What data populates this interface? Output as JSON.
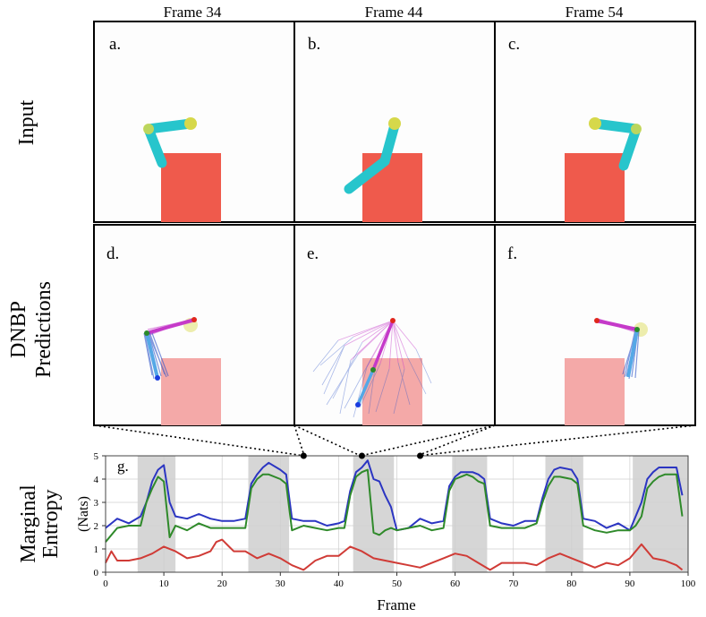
{
  "columns": [
    "Frame 34",
    "Frame 44",
    "Frame 54"
  ],
  "row_labels": {
    "input": "Input",
    "pred_line1": "DNBP",
    "pred_line2": "Predictions",
    "entropy_line1": "Marginal",
    "entropy_line2": "Entropy",
    "entropy_units": "(Nats)"
  },
  "panel_letters": [
    "a.",
    "b.",
    "c.",
    "d.",
    "e.",
    "f."
  ],
  "colors": {
    "arm": "#27c5cc",
    "joint": "#d6d84a",
    "block": "#ef5a4c",
    "block_faded": "#f4a9a8",
    "pred_magenta": "#c53ac9",
    "pred_blue": "#2e55c9",
    "pred_light_blue": "#55a8e6",
    "series_blue": "#2b35c2",
    "series_green": "#2f8a2a",
    "series_red": "#d03b36",
    "shade": "#d6d6d6"
  },
  "chart_data": {
    "type": "line",
    "panel_label": "g.",
    "title": "",
    "xlabel": "Frame",
    "ylabel": "Marginal Entropy (Nats)",
    "xlim": [
      0,
      100
    ],
    "ylim": [
      0,
      5
    ],
    "xticks": [
      0,
      10,
      20,
      30,
      40,
      50,
      60,
      70,
      80,
      90,
      100
    ],
    "yticks": [
      0,
      1,
      2,
      3,
      4,
      5
    ],
    "grid": true,
    "shaded_ranges": [
      [
        5.5,
        12
      ],
      [
        24.5,
        31.5
      ],
      [
        42.5,
        49.5
      ],
      [
        59.5,
        65.5
      ],
      [
        75.5,
        82
      ],
      [
        90.5,
        100
      ]
    ],
    "marked_frames": [
      34,
      44,
      54
    ],
    "series": [
      {
        "name": "blue",
        "color": "#2b35c2",
        "x": [
          0,
          2,
          4,
          6,
          7,
          8,
          9,
          10,
          11,
          12,
          14,
          16,
          18,
          20,
          22,
          24,
          25,
          26,
          27,
          28,
          30,
          31,
          32,
          34,
          36,
          38,
          40,
          41,
          42,
          43,
          44,
          45,
          46,
          47,
          48,
          49,
          50,
          52,
          54,
          56,
          58,
          59,
          60,
          61,
          62,
          63,
          64,
          65,
          66,
          68,
          70,
          72,
          74,
          75,
          76,
          77,
          78,
          80,
          81,
          82,
          84,
          86,
          88,
          90,
          91,
          92,
          93,
          94,
          95,
          96,
          97,
          98,
          99
        ],
        "y": [
          1.9,
          2.3,
          2.1,
          2.4,
          3.0,
          3.9,
          4.4,
          4.6,
          3.0,
          2.4,
          2.3,
          2.5,
          2.3,
          2.2,
          2.2,
          2.3,
          3.8,
          4.2,
          4.5,
          4.7,
          4.4,
          4.2,
          2.3,
          2.2,
          2.2,
          2.0,
          2.1,
          2.2,
          3.5,
          4.3,
          4.5,
          4.8,
          4.0,
          3.9,
          3.3,
          2.8,
          1.8,
          1.9,
          2.3,
          2.1,
          2.2,
          3.7,
          4.1,
          4.3,
          4.3,
          4.3,
          4.2,
          4.0,
          2.3,
          2.1,
          2.0,
          2.2,
          2.2,
          3.2,
          4.0,
          4.4,
          4.5,
          4.4,
          4.0,
          2.3,
          2.2,
          1.9,
          2.1,
          1.8,
          2.4,
          3.0,
          4.0,
          4.3,
          4.5,
          4.5,
          4.5,
          4.5,
          3.3
        ]
      },
      {
        "name": "green",
        "color": "#2f8a2a",
        "x": [
          0,
          2,
          4,
          6,
          7,
          8,
          9,
          10,
          11,
          12,
          14,
          16,
          18,
          20,
          22,
          24,
          25,
          26,
          27,
          28,
          30,
          31,
          32,
          34,
          36,
          38,
          40,
          41,
          42,
          43,
          44,
          45,
          46,
          47,
          48,
          49,
          50,
          52,
          54,
          56,
          58,
          59,
          60,
          61,
          62,
          63,
          64,
          65,
          66,
          68,
          70,
          72,
          74,
          75,
          76,
          77,
          78,
          80,
          81,
          82,
          84,
          86,
          88,
          90,
          91,
          92,
          93,
          94,
          95,
          96,
          97,
          98,
          99
        ],
        "y": [
          1.3,
          1.9,
          2.0,
          2.0,
          3.0,
          3.6,
          4.1,
          3.9,
          1.5,
          2.0,
          1.8,
          2.1,
          1.9,
          1.9,
          1.9,
          1.9,
          3.6,
          4.0,
          4.2,
          4.2,
          4.0,
          3.8,
          1.8,
          2.0,
          1.9,
          1.8,
          1.9,
          1.9,
          3.3,
          4.1,
          4.3,
          4.4,
          1.7,
          1.6,
          1.8,
          1.9,
          1.8,
          1.9,
          2.0,
          1.8,
          1.9,
          3.5,
          4.0,
          4.1,
          4.2,
          4.1,
          3.9,
          3.8,
          2.0,
          1.9,
          1.9,
          1.9,
          2.1,
          3.0,
          3.7,
          4.1,
          4.1,
          4.0,
          3.8,
          2.0,
          1.8,
          1.7,
          1.8,
          1.8,
          2.0,
          2.4,
          3.6,
          3.9,
          4.1,
          4.2,
          4.2,
          4.2,
          2.4
        ]
      },
      {
        "name": "red",
        "color": "#d03b36",
        "x": [
          0,
          1,
          2,
          4,
          6,
          8,
          10,
          12,
          14,
          16,
          18,
          19,
          20,
          22,
          24,
          26,
          28,
          30,
          32,
          34,
          36,
          38,
          40,
          42,
          44,
          46,
          48,
          50,
          52,
          54,
          56,
          58,
          60,
          62,
          64,
          66,
          68,
          70,
          72,
          74,
          76,
          78,
          80,
          82,
          84,
          86,
          88,
          90,
          92,
          94,
          96,
          98,
          99
        ],
        "y": [
          0.4,
          0.9,
          0.5,
          0.5,
          0.6,
          0.8,
          1.1,
          0.9,
          0.6,
          0.7,
          0.9,
          1.3,
          1.4,
          0.9,
          0.9,
          0.6,
          0.8,
          0.6,
          0.3,
          0.1,
          0.5,
          0.7,
          0.7,
          1.1,
          0.9,
          0.6,
          0.5,
          0.4,
          0.3,
          0.2,
          0.4,
          0.6,
          0.8,
          0.7,
          0.4,
          0.1,
          0.4,
          0.4,
          0.4,
          0.3,
          0.6,
          0.8,
          0.6,
          0.4,
          0.2,
          0.4,
          0.3,
          0.6,
          1.2,
          0.6,
          0.5,
          0.3,
          0.1
        ]
      }
    ]
  }
}
